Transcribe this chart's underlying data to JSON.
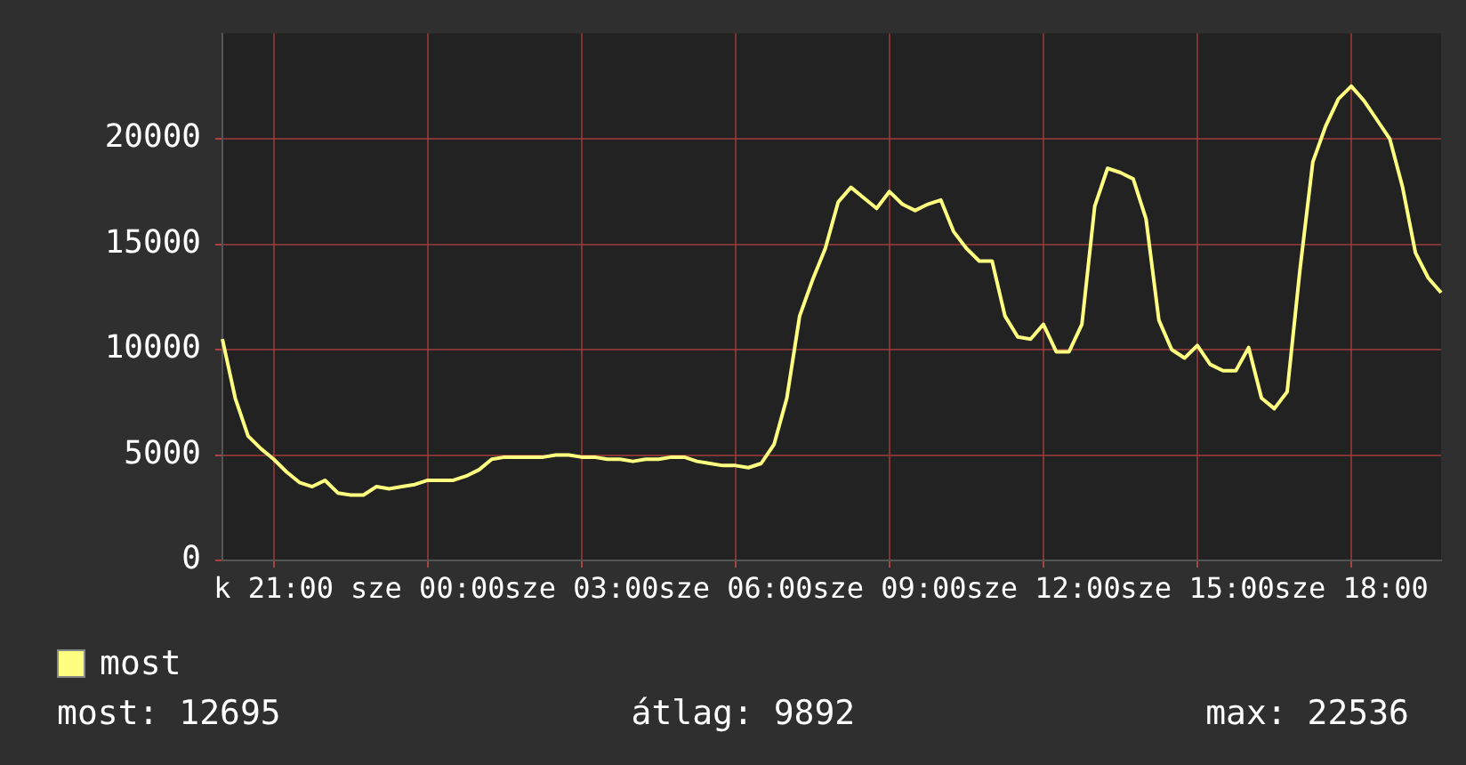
{
  "chart_data": {
    "type": "line",
    "categories": [
      null,
      null,
      null,
      null,
      "k 21:00",
      null,
      null,
      null,
      null,
      null,
      null,
      null,
      null,
      null,
      null,
      null,
      "sze 00:00",
      null,
      null,
      null,
      null,
      null,
      null,
      null,
      null,
      null,
      null,
      null,
      "sze 03:00",
      null,
      null,
      null,
      null,
      null,
      null,
      null,
      null,
      null,
      null,
      null,
      "sze 06:00",
      null,
      null,
      null,
      null,
      null,
      null,
      null,
      null,
      null,
      null,
      null,
      "sze 09:00",
      null,
      null,
      null,
      null,
      null,
      null,
      null,
      null,
      null,
      null,
      null,
      "sze 12:00",
      null,
      null,
      null,
      null,
      null,
      null,
      null,
      null,
      null,
      null,
      null,
      "sze 15:00",
      null,
      null,
      null,
      null,
      null,
      null,
      null,
      null,
      null,
      null,
      null,
      "sze 18:00",
      null,
      null,
      null,
      null,
      null,
      null,
      null
    ],
    "series": [
      {
        "name": "most",
        "color": "#ffff80",
        "values": [
          10500,
          7700,
          5900,
          5300,
          4800,
          4200,
          3700,
          3500,
          3800,
          3200,
          3100,
          3100,
          3500,
          3400,
          3500,
          3600,
          3800,
          3800,
          3800,
          4000,
          4300,
          4800,
          4900,
          4900,
          4900,
          4900,
          5000,
          5000,
          4900,
          4900,
          4800,
          4800,
          4700,
          4800,
          4800,
          4900,
          4900,
          4700,
          4600,
          4500,
          4500,
          4400,
          4600,
          5500,
          7700,
          11600,
          13300,
          14800,
          17000,
          17700,
          17200,
          16700,
          17500,
          16900,
          16600,
          16900,
          17100,
          15600,
          14800,
          14200,
          14200,
          11600,
          10600,
          10500,
          11200,
          9900,
          9900,
          11200,
          16800,
          18600,
          18400,
          18100,
          16200,
          11400,
          10000,
          9600,
          10200,
          9300,
          9000,
          9000,
          10100,
          7700,
          7200,
          8000,
          13800,
          18900,
          20600,
          21900,
          22500,
          21800,
          20900,
          20000,
          17700,
          14600,
          13400,
          12700
        ]
      }
    ],
    "ylim": [
      0,
      25000
    ],
    "yticks": [
      0,
      5000,
      10000,
      15000,
      20000
    ],
    "grid": true,
    "legend": "bottom",
    "marker": "none",
    "line_style": "solid",
    "annotations": [
      "most: 12695",
      "átlag: 9892",
      "max: 22536"
    ]
  }
}
